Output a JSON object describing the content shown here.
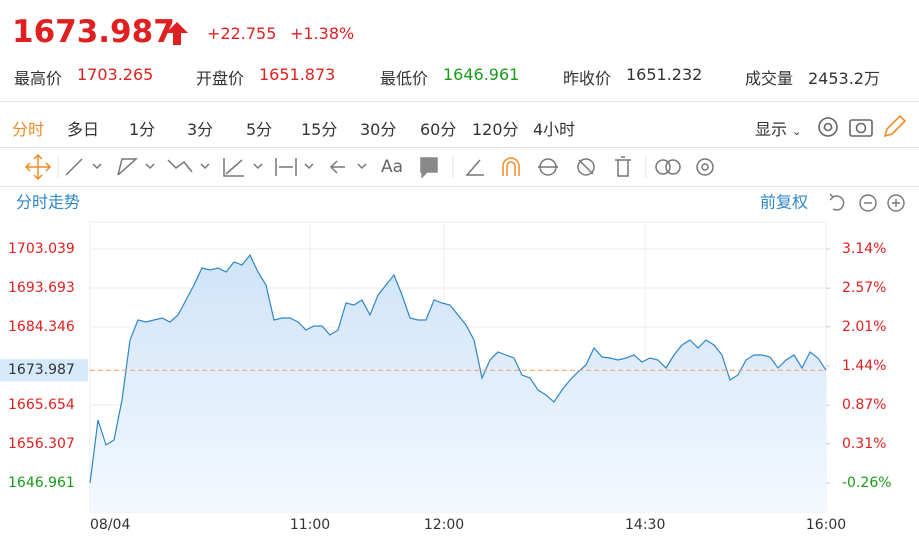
{
  "header": {
    "price": "1673.987",
    "change": "+22.755",
    "change_pct": "+1.38%",
    "stats": [
      {
        "label": "最高价",
        "value": "1703.265"
      },
      {
        "label": "开盘价",
        "value": "1651.873"
      },
      {
        "label": "最低价",
        "value": "1646.961"
      },
      {
        "label": "昨收价",
        "value": "1651.232"
      },
      {
        "label": "成交量",
        "value": "2453.2万"
      }
    ]
  },
  "periods": [
    "分时",
    "多日",
    "1分",
    "3分",
    "5分",
    "15分",
    "30分",
    "60分",
    "120分",
    "4小时"
  ],
  "display_menu": "显示",
  "font_tool": "Aa",
  "chart_data": {
    "type": "line",
    "title": "分时走势",
    "adjust": "前复权",
    "series": [
      {
        "name": "price",
        "color": "#2f86c8",
        "values": [
          1646.96,
          1662.06,
          1656.07,
          1657.27,
          1666.85,
          1681.23,
          1686.02,
          1685.54,
          1686.02,
          1686.5,
          1685.54,
          1687.22,
          1690.82,
          1694.41,
          1698.49,
          1698.01,
          1698.49,
          1697.53,
          1699.92,
          1699.2,
          1701.6,
          1697.53,
          1694.41,
          1686.02,
          1686.5,
          1686.5,
          1685.54,
          1683.63,
          1684.59,
          1684.59,
          1682.43,
          1683.63,
          1690.1,
          1689.62,
          1690.82,
          1687.22,
          1692.02,
          1694.41,
          1696.81,
          1692.02,
          1686.5,
          1686.02,
          1686.02,
          1690.82,
          1690.1,
          1689.62,
          1687.22,
          1684.83,
          1681.23,
          1672.13,
          1676.44,
          1678.36,
          1677.64,
          1676.92,
          1672.84,
          1672.13,
          1669.25,
          1668.05,
          1666.37,
          1669.25,
          1671.65,
          1673.56,
          1675.24,
          1679.31,
          1677.16,
          1676.92,
          1676.44,
          1676.92,
          1677.64,
          1675.96,
          1676.92,
          1676.44,
          1674.52,
          1677.64,
          1680.03,
          1681.23,
          1679.31,
          1681.23,
          1680.03,
          1677.64,
          1671.65,
          1672.84,
          1676.44,
          1677.64,
          1677.64,
          1677.16,
          1674.52,
          1676.44,
          1677.64,
          1674.52,
          1678.36,
          1676.92,
          1673.99
        ]
      }
    ],
    "current_price": 1673.987,
    "xlim": [
      0,
      92
    ],
    "xticks": [
      {
        "value": 0,
        "label": "08/04"
      },
      {
        "value": 27.5,
        "label": "11:00"
      },
      {
        "value": 44.25,
        "label": "12:00"
      },
      {
        "value": 69.4,
        "label": "14:30"
      },
      {
        "value": 92,
        "label": "16:00"
      }
    ],
    "ylim": [
      1640.01,
      1709.51
    ],
    "yticks": [
      1703.039,
      1693.693,
      1684.346,
      1665.654,
      1656.307,
      1646.961
    ],
    "y2lim": [
      -0.681,
      3.532
    ],
    "y2ticks": [
      {
        "value": 3.14,
        "label": "3.14%"
      },
      {
        "value": 2.57,
        "label": "2.57%"
      },
      {
        "value": 2.01,
        "label": "2.01%"
      },
      {
        "value": 1.44,
        "label": "1.44%"
      },
      {
        "value": 0.87,
        "label": "0.87%"
      },
      {
        "value": 0.31,
        "label": "0.31%"
      },
      {
        "value": -0.26,
        "label": "-0.26%"
      }
    ],
    "grid": true,
    "up_color": "#e02020",
    "down_color": "#1a9a1a"
  }
}
